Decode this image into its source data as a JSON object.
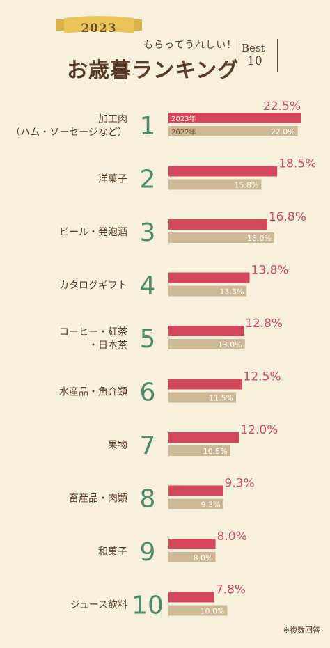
{
  "header": {
    "year_badge": "2023",
    "tagline": "もらってうれしい！",
    "title": "お歳暮ランキング",
    "best_word": "Best",
    "best_num": "10",
    "ribbon_color": "#e8c45a"
  },
  "footnote": "※複数回答",
  "colors": {
    "bar_2023": "#d4495a",
    "bar_2022": "#cdb895",
    "rank": "#4f8a6c",
    "text": "#5a3a22",
    "background": "#f7f0dc"
  },
  "chart_data": {
    "type": "bar",
    "orientation": "horizontal",
    "xlim": [
      0,
      22.5
    ],
    "series": [
      {
        "name": "2023年",
        "values": [
          22.5,
          18.5,
          16.8,
          13.8,
          12.8,
          12.5,
          12.0,
          9.3,
          8.0,
          7.8
        ]
      },
      {
        "name": "2022年",
        "values": [
          22.0,
          15.8,
          18.0,
          13.3,
          13.0,
          11.5,
          10.5,
          9.3,
          8.0,
          10.0
        ]
      }
    ],
    "categories": [
      {
        "rank": "1",
        "lines": [
          "加工肉",
          "（ハム・ソーセージなど）"
        ]
      },
      {
        "rank": "2",
        "lines": [
          "洋菓子"
        ]
      },
      {
        "rank": "3",
        "lines": [
          "ビール・発泡酒"
        ]
      },
      {
        "rank": "4",
        "lines": [
          "カタログギフト"
        ]
      },
      {
        "rank": "5",
        "lines": [
          "コーヒー・紅茶",
          "・日本茶"
        ]
      },
      {
        "rank": "6",
        "lines": [
          "水産品・魚介類"
        ]
      },
      {
        "rank": "7",
        "lines": [
          "果物"
        ]
      },
      {
        "rank": "8",
        "lines": [
          "畜産品・肉類"
        ]
      },
      {
        "rank": "9",
        "lines": [
          "和菓子"
        ]
      },
      {
        "rank": "10",
        "lines": [
          "ジュース飲料"
        ]
      }
    ]
  }
}
